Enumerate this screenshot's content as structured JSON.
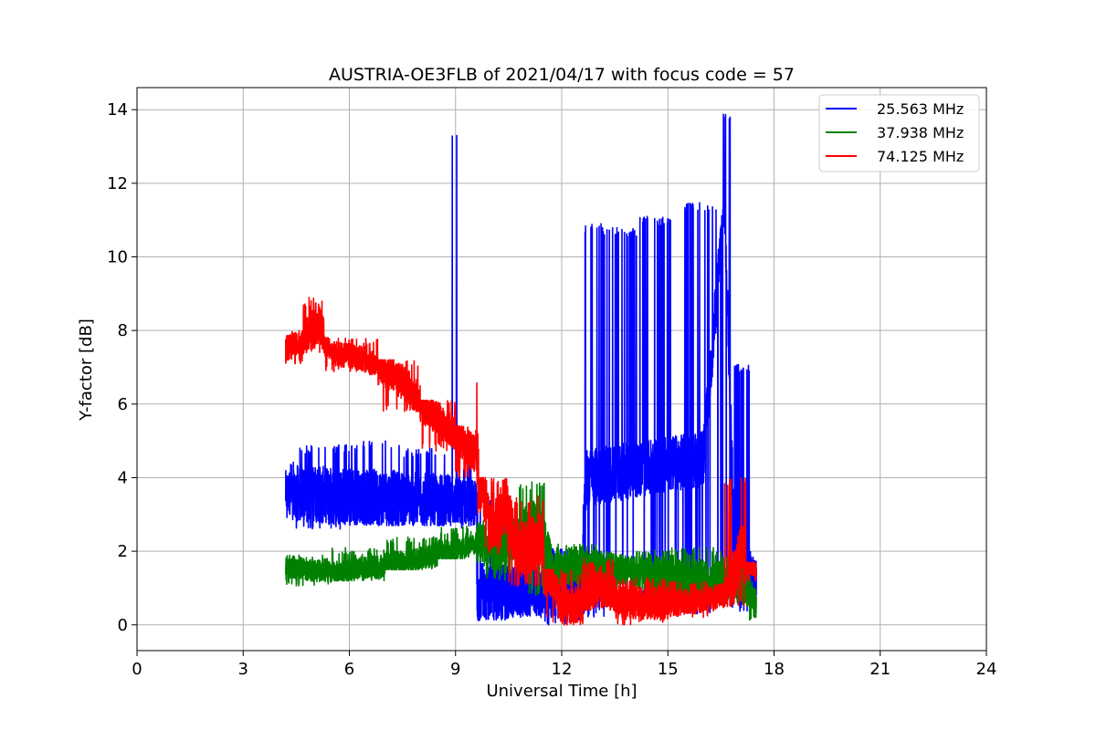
{
  "chart_data": {
    "type": "line",
    "title": "AUSTRIA-OE3FLB of 2021/04/17 with focus code = 57",
    "xlabel": "Universal Time [h]",
    "ylabel": "Y-factor [dB]",
    "xlim": [
      0,
      24
    ],
    "ylim": [
      -0.7,
      14.6
    ],
    "xticks": [
      0,
      3,
      6,
      9,
      12,
      15,
      18,
      21,
      24
    ],
    "yticks": [
      0,
      2,
      4,
      6,
      8,
      10,
      12,
      14
    ],
    "grid": true,
    "legend_position": "top-right",
    "series": [
      {
        "name": "25.563 MHz",
        "color": "#0000ff",
        "segments": [
          {
            "x": [
              4.2,
              4.5
            ],
            "lo": 2.8,
            "hi": 4.5
          },
          {
            "x": [
              4.5,
              6.0
            ],
            "lo": 2.6,
            "hi": 4.9
          },
          {
            "x": [
              6.0,
              7.5
            ],
            "lo": 2.7,
            "hi": 5.0
          },
          {
            "x": [
              7.5,
              8.9
            ],
            "lo": 2.7,
            "hi": 4.8
          },
          {
            "x": [
              8.9,
              9.1
            ],
            "lo": 2.8,
            "hi": 13.5
          },
          {
            "x": [
              9.1,
              9.6
            ],
            "lo": 2.6,
            "hi": 4.4
          },
          {
            "x": [
              9.6,
              10.5
            ],
            "lo": 0.1,
            "hi": 3.6
          },
          {
            "x": [
              10.5,
              11.5
            ],
            "lo": 0.2,
            "hi": 2.2
          },
          {
            "x": [
              11.5,
              12.6
            ],
            "lo": 0.0,
            "hi": 2.1
          },
          {
            "x": [
              12.6,
              13.2
            ],
            "lo": 0.2,
            "hi": 10.9
          },
          {
            "x": [
              13.2,
              14.2
            ],
            "lo": 0.4,
            "hi": 10.8
          },
          {
            "x": [
              14.2,
              15.4
            ],
            "lo": 0.3,
            "hi": 11.1
          },
          {
            "x": [
              15.4,
              16.4
            ],
            "lo": 0.3,
            "hi": 11.5
          },
          {
            "x": [
              16.4,
              16.8
            ],
            "lo": 0.5,
            "hi": 13.9
          },
          {
            "x": [
              16.8,
              17.4
            ],
            "lo": 0.3,
            "hi": 7.1
          },
          {
            "x": [
              17.4,
              17.5
            ],
            "lo": 0.4,
            "hi": 2.0
          }
        ],
        "trend": [
          [
            4.2,
            3.6
          ],
          [
            6.0,
            3.5
          ],
          [
            8.0,
            3.4
          ],
          [
            9.6,
            3.3
          ],
          [
            9.6,
            0.9
          ],
          [
            11.0,
            0.9
          ],
          [
            12.5,
            0.9
          ],
          [
            12.7,
            4.0
          ],
          [
            16.0,
            4.5
          ],
          [
            16.6,
            11.5
          ],
          [
            16.9,
            1.5
          ],
          [
            17.5,
            1.2
          ]
        ]
      },
      {
        "name": "37.938 MHz",
        "color": "#008000",
        "segments": [
          {
            "x": [
              4.2,
              5.5
            ],
            "lo": 1.0,
            "hi": 1.9
          },
          {
            "x": [
              5.5,
              7.0
            ],
            "lo": 1.2,
            "hi": 2.1
          },
          {
            "x": [
              7.0,
              8.5
            ],
            "lo": 1.5,
            "hi": 2.4
          },
          {
            "x": [
              8.5,
              9.6
            ],
            "lo": 1.8,
            "hi": 2.7
          },
          {
            "x": [
              9.6,
              10.8
            ],
            "lo": 1.2,
            "hi": 2.9
          },
          {
            "x": [
              10.8,
              11.7
            ],
            "lo": 0.8,
            "hi": 3.9
          },
          {
            "x": [
              11.7,
              13.0
            ],
            "lo": 0.9,
            "hi": 2.2
          },
          {
            "x": [
              13.0,
              14.5
            ],
            "lo": 0.8,
            "hi": 2.0
          },
          {
            "x": [
              14.5,
              16.5
            ],
            "lo": 0.6,
            "hi": 2.1
          },
          {
            "x": [
              16.5,
              17.3
            ],
            "lo": 0.5,
            "hi": 1.9
          },
          {
            "x": [
              17.3,
              17.5
            ],
            "lo": 0.1,
            "hi": 1.4
          }
        ],
        "trend": [
          [
            4.2,
            1.6
          ],
          [
            5.5,
            1.4
          ],
          [
            7.0,
            1.6
          ],
          [
            8.5,
            1.9
          ],
          [
            9.6,
            2.2
          ],
          [
            10.5,
            2.0
          ],
          [
            11.3,
            2.8
          ],
          [
            11.7,
            1.5
          ],
          [
            13.0,
            1.6
          ],
          [
            15.0,
            1.3
          ],
          [
            16.5,
            1.2
          ],
          [
            17.2,
            1.1
          ],
          [
            17.5,
            0.5
          ]
        ]
      },
      {
        "name": "74.125 MHz",
        "color": "#ff0000",
        "segments": [
          {
            "x": [
              4.2,
              4.7
            ],
            "lo": 7.0,
            "hi": 8.0
          },
          {
            "x": [
              4.7,
              5.3
            ],
            "lo": 7.4,
            "hi": 8.9
          },
          {
            "x": [
              5.3,
              6.8
            ],
            "lo": 6.8,
            "hi": 7.8
          },
          {
            "x": [
              6.8,
              8.0
            ],
            "lo": 5.8,
            "hi": 7.2
          },
          {
            "x": [
              8.0,
              9.0
            ],
            "lo": 4.7,
            "hi": 6.1
          },
          {
            "x": [
              9.0,
              9.6
            ],
            "lo": 4.0,
            "hi": 5.4
          },
          {
            "x": [
              9.6,
              9.65
            ],
            "lo": 3.0,
            "hi": 6.8
          },
          {
            "x": [
              9.65,
              10.5
            ],
            "lo": 1.9,
            "hi": 4.0
          },
          {
            "x": [
              10.5,
              11.5
            ],
            "lo": 1.0,
            "hi": 3.5
          },
          {
            "x": [
              11.5,
              12.6
            ],
            "lo": 0.0,
            "hi": 1.5
          },
          {
            "x": [
              12.6,
              13.5
            ],
            "lo": 0.4,
            "hi": 1.8
          },
          {
            "x": [
              13.5,
              15.0
            ],
            "lo": 0.0,
            "hi": 1.3
          },
          {
            "x": [
              15.0,
              16.6
            ],
            "lo": 0.2,
            "hi": 1.2
          },
          {
            "x": [
              16.6,
              17.2
            ],
            "lo": 0.5,
            "hi": 4.0
          },
          {
            "x": [
              17.2,
              17.5
            ],
            "lo": 1.0,
            "hi": 1.7
          }
        ],
        "trend": [
          [
            4.2,
            7.5
          ],
          [
            4.7,
            7.7
          ],
          [
            5.1,
            8.3
          ],
          [
            5.5,
            7.4
          ],
          [
            6.5,
            7.2
          ],
          [
            7.5,
            6.6
          ],
          [
            8.5,
            5.6
          ],
          [
            9.6,
            4.6
          ],
          [
            10.0,
            2.6
          ],
          [
            10.4,
            3.2
          ],
          [
            10.8,
            2.0
          ],
          [
            11.4,
            2.3
          ],
          [
            12.0,
            0.4
          ],
          [
            12.6,
            0.6
          ],
          [
            13.0,
            1.0
          ],
          [
            14.0,
            0.6
          ],
          [
            15.5,
            0.6
          ],
          [
            16.6,
            0.8
          ],
          [
            17.1,
            2.0
          ],
          [
            17.5,
            1.4
          ]
        ]
      }
    ]
  }
}
